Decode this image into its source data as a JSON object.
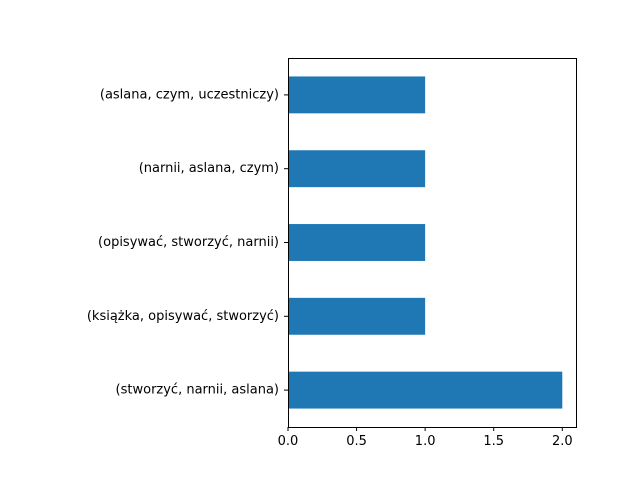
{
  "chart_data": {
    "type": "bar",
    "orientation": "horizontal",
    "title": "",
    "xlabel": "",
    "ylabel": "",
    "categories": [
      "(stworzyć, narnii, aslana)",
      "(książka, opisywać, stworzyć)",
      "(opisywać, stworzyć, narnii)",
      "(narnii, aslana, czym)",
      "(aslana, czym, uczestniczy)"
    ],
    "values": [
      2,
      1,
      1,
      1,
      1
    ],
    "xlim": [
      0,
      2.1
    ],
    "xticks": [
      "0.0",
      "0.5",
      "1.0",
      "1.5",
      "2.0"
    ],
    "grid": false,
    "bar_color": "#1f77b4"
  }
}
